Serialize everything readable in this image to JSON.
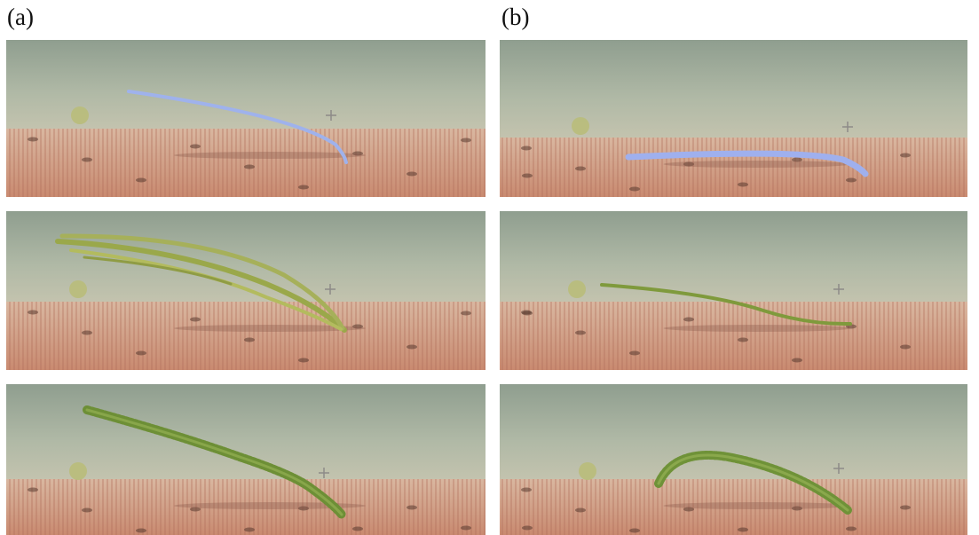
{
  "labels": [
    "(a)",
    "(b)"
  ]
}
